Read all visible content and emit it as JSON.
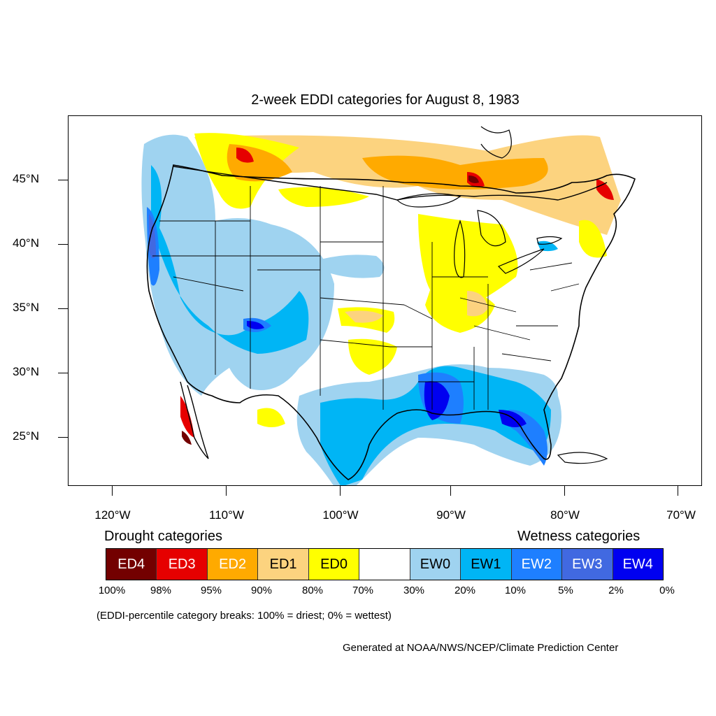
{
  "title": "2-week EDDI categories for August 8, 1983",
  "axes": {
    "lat_labels": [
      "45°N",
      "40°N",
      "35°N",
      "30°N",
      "25°N"
    ],
    "lon_labels": [
      "120°W",
      "110°W",
      "100°W",
      "90°W",
      "80°W",
      "70°W"
    ]
  },
  "map": {
    "region": "Contiguous United States",
    "lon_range": [
      -124,
      -68
    ],
    "lat_range": [
      21,
      49.5
    ],
    "colors": {
      "ED4": "#730000",
      "ED3": "#e60000",
      "ED2": "#ffaa00",
      "ED1": "#fcd37f",
      "ED0": "#ffff00",
      "neutral": "#ffffff",
      "EW0": "#9fd3f0",
      "EW1": "#00b5f5",
      "EW2": "#1e7fff",
      "EW3": "#4169e1",
      "EW4": "#0000f0"
    }
  },
  "legend": {
    "drought_heading": "Drought categories",
    "wetness_heading": "Wetness categories",
    "categories": [
      {
        "label": "ED4",
        "color": "#730000",
        "text_color": "#ffffff"
      },
      {
        "label": "ED3",
        "color": "#e60000",
        "text_color": "#ffffff"
      },
      {
        "label": "ED2",
        "color": "#ffaa00",
        "text_color": "#ffffff"
      },
      {
        "label": "ED1",
        "color": "#fcd37f",
        "text_color": "#000000"
      },
      {
        "label": "ED0",
        "color": "#ffff00",
        "text_color": "#000000"
      },
      {
        "label": "",
        "color": "#ffffff",
        "text_color": "#000000"
      },
      {
        "label": "EW0",
        "color": "#9fd3f0",
        "text_color": "#000000"
      },
      {
        "label": "EW1",
        "color": "#00b5f5",
        "text_color": "#000000"
      },
      {
        "label": "EW2",
        "color": "#1e7fff",
        "text_color": "#ffffff"
      },
      {
        "label": "EW3",
        "color": "#4169e1",
        "text_color": "#ffffff"
      },
      {
        "label": "EW4",
        "color": "#0000f0",
        "text_color": "#ffffff"
      }
    ],
    "breaks": [
      "100%",
      "98%",
      "95%",
      "90%",
      "80%",
      "70%",
      "30%",
      "20%",
      "10%",
      "5%",
      "2%",
      "0%"
    ]
  },
  "note": "(EDDI-percentile category breaks: 100% = driest; 0% = wettest)",
  "credit": "Generated at NOAA/NWS/NCEP/Climate Prediction Center"
}
